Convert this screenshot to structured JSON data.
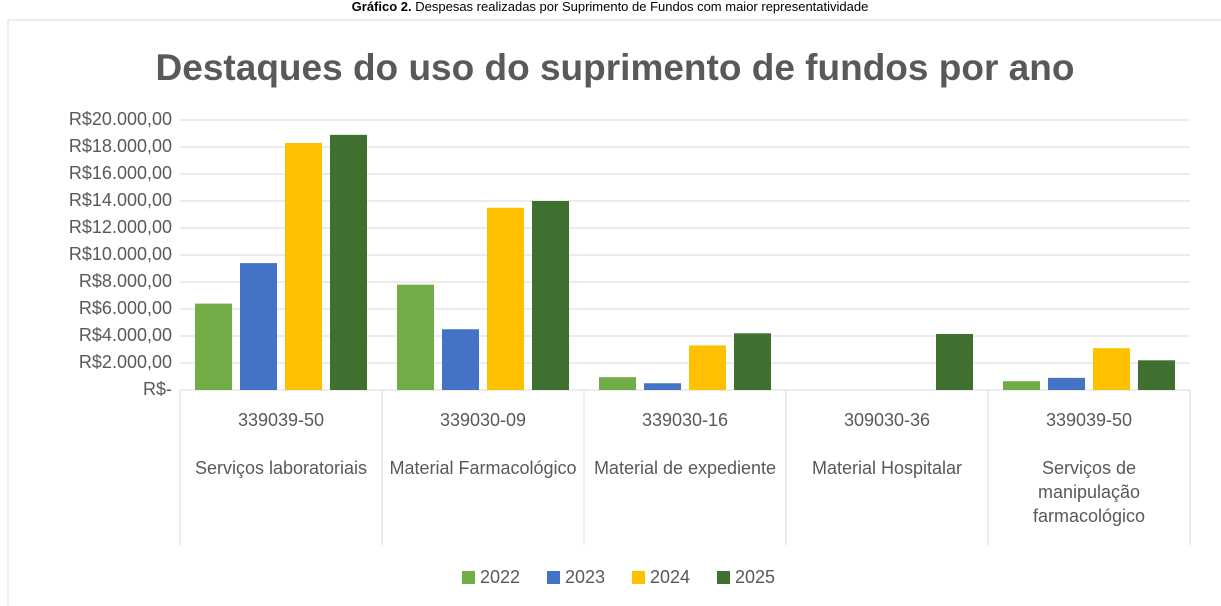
{
  "caption_label": "Gráfico 2.",
  "caption_text": "Despesas realizadas por Suprimento de Fundos com maior representatividade",
  "chart_data": {
    "type": "bar",
    "title": "Destaques do uso do suprimento de fundos por ano",
    "category_codes": [
      "339039-50",
      "339030-09",
      "339030-16",
      "309030-36",
      "339039-50"
    ],
    "categories": [
      "Serviços laboratoriais",
      "Material Farmacológico",
      "Material de expediente",
      "Material Hospitalar",
      "Serviços de manipulação farmacológico"
    ],
    "series": [
      {
        "name": "2022",
        "color": "#70ad47",
        "values": [
          6400,
          7800,
          950,
          null,
          650
        ]
      },
      {
        "name": "2023",
        "color": "#4472c4",
        "values": [
          9400,
          4500,
          500,
          null,
          900
        ]
      },
      {
        "name": "2024",
        "color": "#ffc000",
        "values": [
          18300,
          13500,
          3300,
          null,
          3100
        ]
      },
      {
        "name": "2025",
        "color": "#3f7030",
        "values": [
          18900,
          14000,
          4200,
          4150,
          2200
        ]
      }
    ],
    "ylim": [
      0,
      20000
    ],
    "yticks": [
      {
        "value": 0,
        "label": "R$-"
      },
      {
        "value": 2000,
        "label": "R$2.000,00"
      },
      {
        "value": 4000,
        "label": "R$4.000,00"
      },
      {
        "value": 6000,
        "label": "R$6.000,00"
      },
      {
        "value": 8000,
        "label": "R$8.000,00"
      },
      {
        "value": 10000,
        "label": "R$10.000,00"
      },
      {
        "value": 12000,
        "label": "R$12.000,00"
      },
      {
        "value": 14000,
        "label": "R$14.000,00"
      },
      {
        "value": 16000,
        "label": "R$16.000,00"
      },
      {
        "value": 18000,
        "label": "R$18.000,00"
      },
      {
        "value": 20000,
        "label": "R$20.000,00"
      }
    ],
    "grid": true,
    "legend": "bottom"
  }
}
